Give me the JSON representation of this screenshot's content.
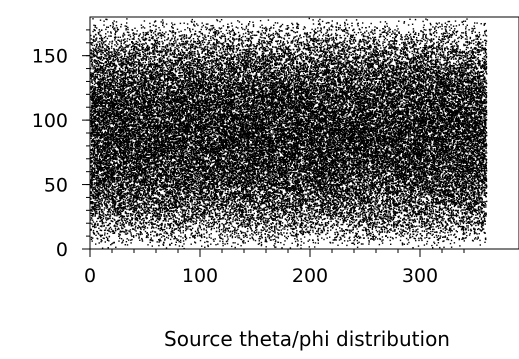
{
  "chart_data": {
    "type": "scatter",
    "title": "Source theta/phi distribution",
    "xlabel": "",
    "ylabel": "",
    "xlim": [
      0,
      360
    ],
    "ylim": [
      0,
      180
    ],
    "x_ticks": [
      0,
      100,
      200,
      300
    ],
    "y_ticks": [
      0,
      50,
      100,
      150
    ],
    "x_tick_labels": [
      "0",
      "100",
      "200",
      "300"
    ],
    "y_tick_labels": [
      "0",
      "50",
      "100",
      "150"
    ],
    "grid": false,
    "legend": "none",
    "marker_color": "#000000",
    "background_color": "#ffffff",
    "series": [
      {
        "distribution": "dense uniform in x, sin(theta)-weighted in y",
        "approx_point_count": 50000
      }
    ]
  }
}
